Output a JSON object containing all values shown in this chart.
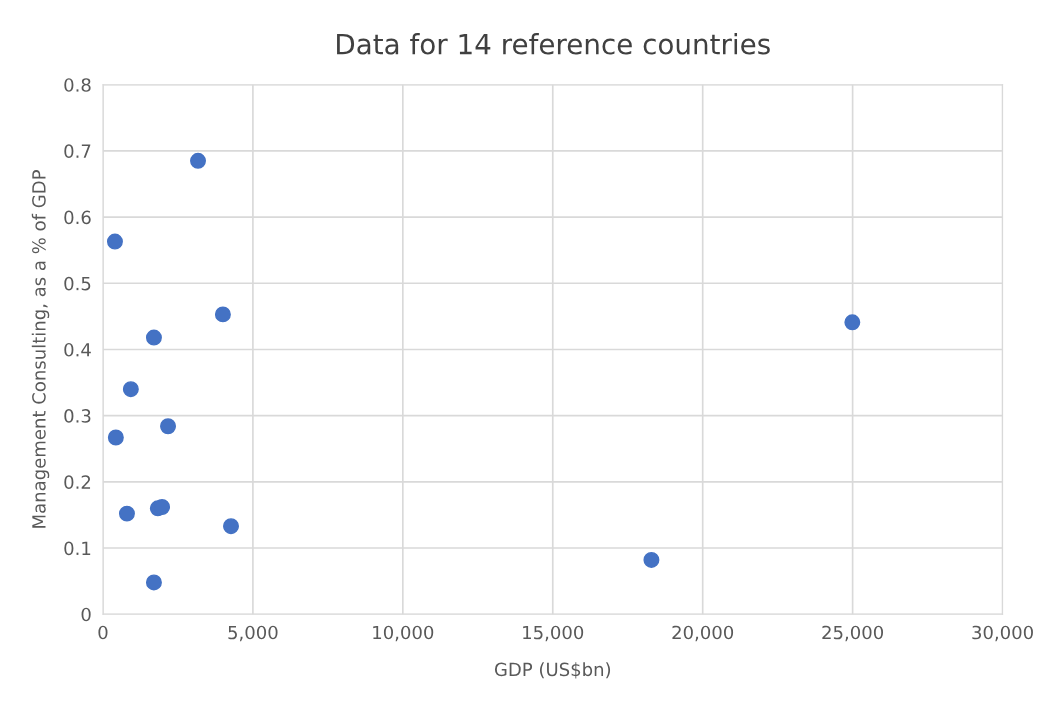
{
  "chart_data": {
    "type": "scatter",
    "title": "Data for 14 reference countries",
    "xlabel": "GDP (US$bn)",
    "ylabel": "Management Consulting, as a % of GDP",
    "x": [
      3170,
      400,
      4000,
      1700,
      930,
      430,
      2170,
      800,
      1830,
      1970,
      4270,
      1700,
      18290,
      24990
    ],
    "values": [
      0.685,
      0.563,
      0.453,
      0.418,
      0.34,
      0.267,
      0.284,
      0.152,
      0.16,
      0.162,
      0.133,
      0.048,
      0.082,
      0.441
    ],
    "color": "#4472c4",
    "marker": "circle",
    "xlim": [
      0,
      30000
    ],
    "xticks": [
      {
        "value": 0,
        "label": "0"
      },
      {
        "value": 5000,
        "label": "5,000"
      },
      {
        "value": 10000,
        "label": "10,000"
      },
      {
        "value": 15000,
        "label": "15,000"
      },
      {
        "value": 20000,
        "label": "20,000"
      },
      {
        "value": 25000,
        "label": "25,000"
      },
      {
        "value": 30000,
        "label": "30,000"
      }
    ],
    "ylim": [
      0,
      0.8
    ],
    "yticks": [
      {
        "value": 0,
        "label": "0"
      },
      0.1,
      0.2,
      0.3,
      0.4,
      0.5,
      0.6,
      0.7,
      0.8
    ],
    "grid": true
  }
}
